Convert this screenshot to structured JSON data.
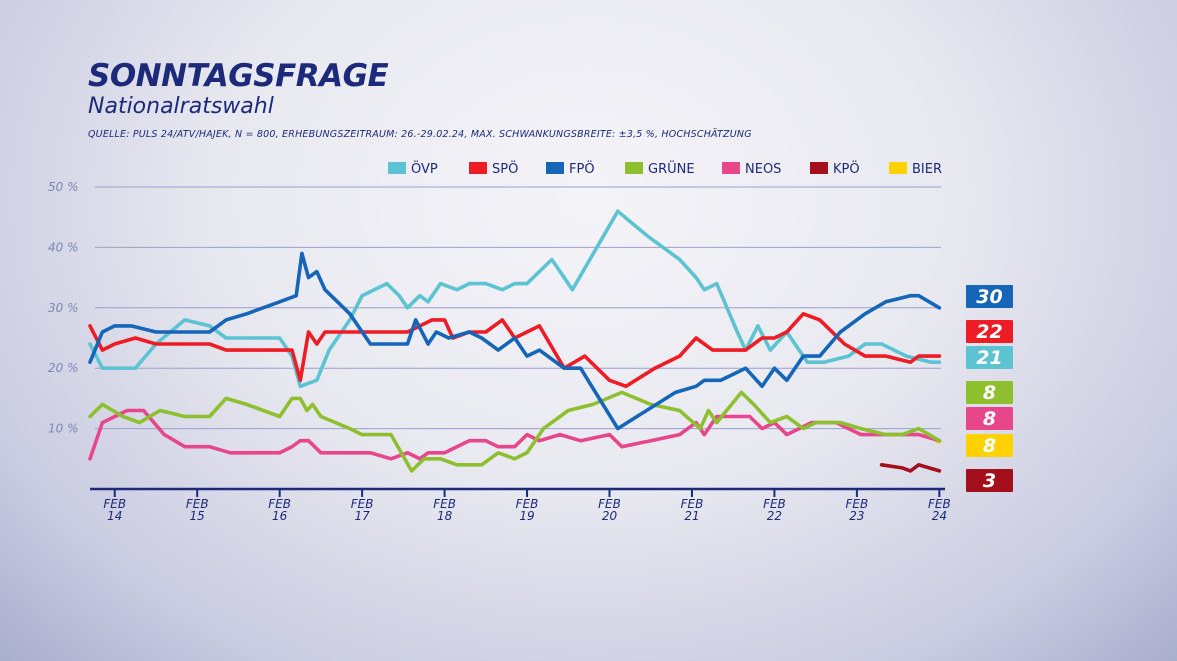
{
  "header": {
    "title": "SONNTAGSFRAGE",
    "subtitle": "Nationalratswahl",
    "source": "QUELLE: PULS 24/ATV/HAJEK, N = 800, ERHEBUNGSZEITRAUM: 26.-29.02.24, MAX. SCHWANKUNGSBREITE: ±3,5 %, HOCHSCHÄTZUNG"
  },
  "chart_data": {
    "type": "line",
    "x_ticks": [
      {
        "x": 2014.0,
        "line1": "FEB",
        "line2": "14"
      },
      {
        "x": 2015.0,
        "line1": "FEB",
        "line2": "15"
      },
      {
        "x": 2016.0,
        "line1": "FEB",
        "line2": "16"
      },
      {
        "x": 2017.0,
        "line1": "FEB",
        "line2": "17"
      },
      {
        "x": 2018.0,
        "line1": "FEB",
        "line2": "18"
      },
      {
        "x": 2019.0,
        "line1": "FEB",
        "line2": "19"
      },
      {
        "x": 2020.0,
        "line1": "FEB",
        "line2": "20"
      },
      {
        "x": 2021.0,
        "line1": "FEB",
        "line2": "21"
      },
      {
        "x": 2022.0,
        "line1": "FEB",
        "line2": "22"
      },
      {
        "x": 2023.0,
        "line1": "FEB",
        "line2": "23"
      },
      {
        "x": 2024.0,
        "line1": "FEB",
        "line2": "24"
      }
    ],
    "xlim": [
      2013.7,
      2024.02
    ],
    "ylim": [
      0,
      50
    ],
    "y_ticks": [
      {
        "value": 10,
        "label": "10 %"
      },
      {
        "value": 20,
        "label": "20 %"
      },
      {
        "value": 30,
        "label": "30 %"
      },
      {
        "value": 40,
        "label": "40 %"
      },
      {
        "value": 50,
        "label": "50 %"
      }
    ],
    "grid": true,
    "legend_position": "top-right",
    "series": [
      {
        "name": "ÖVP",
        "color": "#5bc3d2",
        "final_label": "21",
        "final_value": 21,
        "points": [
          [
            2013.7,
            24
          ],
          [
            2013.85,
            20
          ],
          [
            2014.25,
            20
          ],
          [
            2014.5,
            24
          ],
          [
            2014.85,
            28
          ],
          [
            2015.15,
            27
          ],
          [
            2015.35,
            25
          ],
          [
            2015.55,
            25
          ],
          [
            2015.75,
            25
          ],
          [
            2016.0,
            25
          ],
          [
            2016.15,
            22
          ],
          [
            2016.25,
            17
          ],
          [
            2016.45,
            18
          ],
          [
            2016.6,
            23
          ],
          [
            2016.85,
            28
          ],
          [
            2017.0,
            32
          ],
          [
            2017.3,
            34
          ],
          [
            2017.45,
            32
          ],
          [
            2017.55,
            30
          ],
          [
            2017.7,
            32
          ],
          [
            2017.8,
            31
          ],
          [
            2017.95,
            34
          ],
          [
            2018.15,
            33
          ],
          [
            2018.3,
            34
          ],
          [
            2018.5,
            34
          ],
          [
            2018.7,
            33
          ],
          [
            2018.85,
            34
          ],
          [
            2019.0,
            34
          ],
          [
            2019.3,
            38
          ],
          [
            2019.55,
            33
          ],
          [
            2020.1,
            46
          ],
          [
            2020.45,
            42
          ],
          [
            2020.85,
            38
          ],
          [
            2021.05,
            35
          ],
          [
            2021.15,
            33
          ],
          [
            2021.3,
            34
          ],
          [
            2021.55,
            26
          ],
          [
            2021.65,
            23
          ],
          [
            2021.8,
            27
          ],
          [
            2021.95,
            23
          ],
          [
            2022.15,
            26
          ],
          [
            2022.4,
            21
          ],
          [
            2022.6,
            21
          ],
          [
            2022.9,
            22
          ],
          [
            2023.1,
            24
          ],
          [
            2023.3,
            24
          ],
          [
            2023.6,
            22
          ],
          [
            2023.9,
            21
          ],
          [
            2024.0,
            21
          ]
        ]
      },
      {
        "name": "SPÖ",
        "color": "#ee1c25",
        "final_label": "22",
        "final_value": 22,
        "points": [
          [
            2013.7,
            27
          ],
          [
            2013.85,
            23
          ],
          [
            2014.0,
            24
          ],
          [
            2014.25,
            25
          ],
          [
            2014.5,
            24
          ],
          [
            2014.85,
            24
          ],
          [
            2015.15,
            24
          ],
          [
            2015.35,
            23
          ],
          [
            2015.75,
            23
          ],
          [
            2016.0,
            23
          ],
          [
            2016.15,
            23
          ],
          [
            2016.25,
            18
          ],
          [
            2016.35,
            26
          ],
          [
            2016.45,
            24
          ],
          [
            2016.55,
            26
          ],
          [
            2016.85,
            26
          ],
          [
            2017.0,
            26
          ],
          [
            2017.3,
            26
          ],
          [
            2017.55,
            26
          ],
          [
            2017.85,
            28
          ],
          [
            2018.0,
            28
          ],
          [
            2018.1,
            25
          ],
          [
            2018.3,
            26
          ],
          [
            2018.5,
            26
          ],
          [
            2018.7,
            28
          ],
          [
            2018.85,
            25
          ],
          [
            2019.15,
            27
          ],
          [
            2019.45,
            20
          ],
          [
            2019.7,
            22
          ],
          [
            2020.0,
            18
          ],
          [
            2020.2,
            17
          ],
          [
            2020.55,
            20
          ],
          [
            2020.85,
            22
          ],
          [
            2021.05,
            25
          ],
          [
            2021.25,
            23
          ],
          [
            2021.45,
            23
          ],
          [
            2021.65,
            23
          ],
          [
            2021.85,
            25
          ],
          [
            2022.0,
            25
          ],
          [
            2022.15,
            26
          ],
          [
            2022.35,
            29
          ],
          [
            2022.55,
            28
          ],
          [
            2022.85,
            24
          ],
          [
            2023.1,
            22
          ],
          [
            2023.35,
            22
          ],
          [
            2023.65,
            21
          ],
          [
            2023.75,
            22
          ],
          [
            2024.0,
            22
          ]
        ]
      },
      {
        "name": "FPÖ",
        "color": "#1565b8",
        "final_label": "30",
        "final_value": 30,
        "points": [
          [
            2013.7,
            21
          ],
          [
            2013.85,
            26
          ],
          [
            2014.0,
            27
          ],
          [
            2014.2,
            27
          ],
          [
            2014.5,
            26
          ],
          [
            2014.85,
            26
          ],
          [
            2015.15,
            26
          ],
          [
            2015.35,
            28
          ],
          [
            2015.6,
            29
          ],
          [
            2016.0,
            31
          ],
          [
            2016.2,
            32
          ],
          [
            2016.27,
            39
          ],
          [
            2016.35,
            35
          ],
          [
            2016.45,
            36
          ],
          [
            2016.55,
            33
          ],
          [
            2016.85,
            29
          ],
          [
            2017.1,
            24
          ],
          [
            2017.3,
            24
          ],
          [
            2017.55,
            24
          ],
          [
            2017.65,
            28
          ],
          [
            2017.8,
            24
          ],
          [
            2017.9,
            26
          ],
          [
            2018.05,
            25
          ],
          [
            2018.3,
            26
          ],
          [
            2018.45,
            25
          ],
          [
            2018.65,
            23
          ],
          [
            2018.85,
            25
          ],
          [
            2019.0,
            22
          ],
          [
            2019.15,
            23
          ],
          [
            2019.45,
            20
          ],
          [
            2019.65,
            20
          ],
          [
            2020.1,
            10
          ],
          [
            2020.45,
            13
          ],
          [
            2020.8,
            16
          ],
          [
            2021.05,
            17
          ],
          [
            2021.15,
            18
          ],
          [
            2021.35,
            18
          ],
          [
            2021.65,
            20
          ],
          [
            2021.85,
            17
          ],
          [
            2022.0,
            20
          ],
          [
            2022.15,
            18
          ],
          [
            2022.35,
            22
          ],
          [
            2022.55,
            22
          ],
          [
            2022.8,
            26
          ],
          [
            2023.1,
            29
          ],
          [
            2023.35,
            31
          ],
          [
            2023.65,
            32
          ],
          [
            2023.75,
            32
          ],
          [
            2024.0,
            30
          ]
        ]
      },
      {
        "name": "GRÜNE",
        "color": "#8ebf2f",
        "final_label": "8",
        "final_value": 8,
        "points": [
          [
            2013.7,
            12
          ],
          [
            2013.85,
            14
          ],
          [
            2014.1,
            12
          ],
          [
            2014.3,
            11
          ],
          [
            2014.55,
            13
          ],
          [
            2014.85,
            12
          ],
          [
            2015.15,
            12
          ],
          [
            2015.35,
            15
          ],
          [
            2015.6,
            14
          ],
          [
            2016.0,
            12
          ],
          [
            2016.15,
            15
          ],
          [
            2016.25,
            15
          ],
          [
            2016.33,
            13
          ],
          [
            2016.4,
            14
          ],
          [
            2016.5,
            12
          ],
          [
            2016.85,
            10
          ],
          [
            2017.0,
            9
          ],
          [
            2017.35,
            9
          ],
          [
            2017.6,
            3
          ],
          [
            2017.75,
            5
          ],
          [
            2017.95,
            5
          ],
          [
            2018.15,
            4
          ],
          [
            2018.45,
            4
          ],
          [
            2018.65,
            6
          ],
          [
            2018.85,
            5
          ],
          [
            2019.0,
            6
          ],
          [
            2019.2,
            10
          ],
          [
            2019.5,
            13
          ],
          [
            2019.8,
            14
          ],
          [
            2020.15,
            16
          ],
          [
            2020.5,
            14
          ],
          [
            2020.85,
            13
          ],
          [
            2021.1,
            10
          ],
          [
            2021.2,
            13
          ],
          [
            2021.3,
            11
          ],
          [
            2021.6,
            16
          ],
          [
            2021.75,
            14
          ],
          [
            2021.95,
            11
          ],
          [
            2022.15,
            12
          ],
          [
            2022.35,
            10
          ],
          [
            2022.5,
            11
          ],
          [
            2022.8,
            11
          ],
          [
            2023.05,
            10
          ],
          [
            2023.35,
            9
          ],
          [
            2023.55,
            9
          ],
          [
            2023.75,
            10
          ],
          [
            2024.0,
            8
          ]
        ]
      },
      {
        "name": "NEOS",
        "color": "#e8468b",
        "final_label": "8",
        "final_value": 8,
        "points": [
          [
            2013.7,
            5
          ],
          [
            2013.85,
            11
          ],
          [
            2014.15,
            13
          ],
          [
            2014.35,
            13
          ],
          [
            2014.6,
            9
          ],
          [
            2014.85,
            7
          ],
          [
            2015.15,
            7
          ],
          [
            2015.4,
            6
          ],
          [
            2015.75,
            6
          ],
          [
            2016.0,
            6
          ],
          [
            2016.15,
            7
          ],
          [
            2016.25,
            8
          ],
          [
            2016.35,
            8
          ],
          [
            2016.5,
            6
          ],
          [
            2016.85,
            6
          ],
          [
            2017.1,
            6
          ],
          [
            2017.35,
            5
          ],
          [
            2017.55,
            6
          ],
          [
            2017.7,
            5
          ],
          [
            2017.8,
            6
          ],
          [
            2018.0,
            6
          ],
          [
            2018.3,
            8
          ],
          [
            2018.5,
            8
          ],
          [
            2018.65,
            7
          ],
          [
            2018.85,
            7
          ],
          [
            2019.0,
            9
          ],
          [
            2019.15,
            8
          ],
          [
            2019.4,
            9
          ],
          [
            2019.65,
            8
          ],
          [
            2020.0,
            9
          ],
          [
            2020.15,
            7
          ],
          [
            2020.5,
            8
          ],
          [
            2020.85,
            9
          ],
          [
            2021.05,
            11
          ],
          [
            2021.15,
            9
          ],
          [
            2021.3,
            12
          ],
          [
            2021.55,
            12
          ],
          [
            2021.7,
            12
          ],
          [
            2021.85,
            10
          ],
          [
            2022.0,
            11
          ],
          [
            2022.15,
            9
          ],
          [
            2022.45,
            11
          ],
          [
            2022.75,
            11
          ],
          [
            2023.05,
            9
          ],
          [
            2023.35,
            9
          ],
          [
            2023.75,
            9
          ],
          [
            2024.0,
            8
          ]
        ]
      },
      {
        "name": "KPÖ",
        "color": "#a3101b",
        "final_label": "3",
        "final_value": 3,
        "points": [
          [
            2023.3,
            4
          ],
          [
            2023.55,
            3.5
          ],
          [
            2023.65,
            3
          ],
          [
            2023.75,
            4
          ],
          [
            2024.0,
            3
          ]
        ]
      },
      {
        "name": "BIER",
        "color": "#ffd100",
        "final_label": "8",
        "final_value": 8,
        "points": [
          [
            2023.97,
            8
          ],
          [
            2024.0,
            7.8
          ]
        ]
      }
    ],
    "badges_order": [
      "FPÖ",
      "SPÖ",
      "ÖVP",
      "GRÜNE",
      "NEOS",
      "BIER",
      "KPÖ"
    ]
  }
}
